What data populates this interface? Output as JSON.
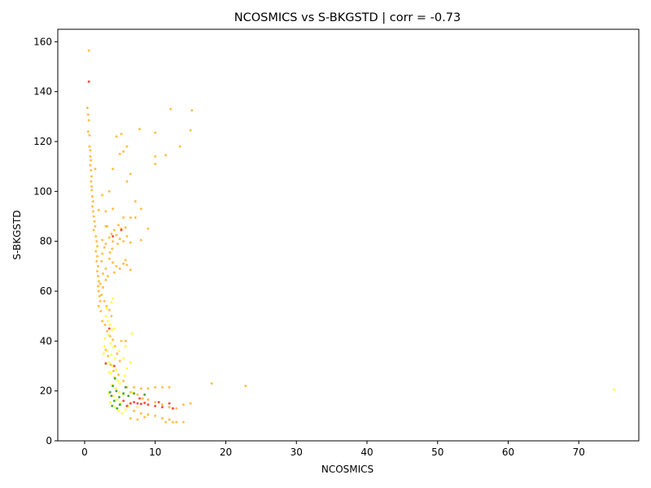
{
  "chart_data": {
    "type": "scatter",
    "title": "NCOSMICS vs S-BKGSTD | corr = -0.73",
    "xlabel": "NCOSMICS",
    "ylabel": "S-BKGSTD",
    "xlim": [
      -3.8,
      78.5
    ],
    "ylim": [
      0,
      165
    ],
    "xticks": [
      0,
      10,
      20,
      30,
      40,
      50,
      60,
      70
    ],
    "yticks": [
      0,
      20,
      40,
      60,
      80,
      100,
      120,
      140,
      160
    ],
    "grid": false,
    "legend": "none",
    "colors": {
      "orange": "#ffa500",
      "yellow": "#ffff00",
      "red": "#ff0000",
      "green": "#008000"
    },
    "series": [
      {
        "color_key": "orange",
        "points": [
          [
            0.6,
            156.5
          ],
          [
            0.4,
            133.5
          ],
          [
            0.5,
            130.8
          ],
          [
            0.6,
            128.5
          ],
          [
            0.5,
            124.0
          ],
          [
            0.7,
            122.5
          ],
          [
            0.7,
            118.0
          ],
          [
            0.8,
            116.5
          ],
          [
            0.8,
            114.0
          ],
          [
            0.9,
            112.5
          ],
          [
            0.8,
            110.5
          ],
          [
            0.9,
            108.5
          ],
          [
            1.0,
            106.0
          ],
          [
            0.9,
            104.0
          ],
          [
            1.0,
            102.0
          ],
          [
            1.0,
            100.5
          ],
          [
            1.1,
            98.0
          ],
          [
            1.2,
            96.0
          ],
          [
            1.1,
            94.0
          ],
          [
            1.2,
            92.0
          ],
          [
            1.3,
            90.0
          ],
          [
            1.4,
            88.0
          ],
          [
            1.5,
            86.0
          ],
          [
            1.3,
            84.5
          ],
          [
            1.6,
            82.0
          ],
          [
            1.7,
            80.0
          ],
          [
            1.8,
            78.0
          ],
          [
            1.6,
            76.0
          ],
          [
            1.8,
            74.0
          ],
          [
            1.7,
            72.0
          ],
          [
            1.9,
            70.0
          ],
          [
            1.8,
            68.0
          ],
          [
            1.9,
            66.0
          ],
          [
            2.0,
            64.0
          ],
          [
            1.9,
            62.0
          ],
          [
            2.0,
            60.0
          ],
          [
            2.1,
            58.0
          ],
          [
            2.2,
            56.0
          ],
          [
            2.0,
            54.0
          ],
          [
            2.3,
            52.0
          ],
          [
            2.5,
            80.5
          ],
          [
            3.0,
            79.0
          ],
          [
            3.5,
            81.5
          ],
          [
            4.0,
            80.0
          ],
          [
            4.5,
            82.5
          ],
          [
            5.0,
            81.0
          ],
          [
            5.5,
            80.0
          ],
          [
            6.0,
            82.0
          ],
          [
            6.5,
            79.5
          ],
          [
            3.8,
            83.0
          ],
          [
            4.2,
            84.5
          ],
          [
            5.2,
            85.0
          ],
          [
            4.8,
            86.5
          ],
          [
            3.2,
            86.0
          ],
          [
            2.8,
            77.5
          ],
          [
            2.5,
            75.0
          ],
          [
            3.5,
            73.0
          ],
          [
            4.0,
            71.5
          ],
          [
            4.5,
            70.0
          ],
          [
            5.0,
            69.0
          ],
          [
            5.5,
            71.0
          ],
          [
            6.0,
            70.5
          ],
          [
            6.5,
            68.5
          ],
          [
            3.0,
            69.0
          ],
          [
            2.6,
            67.0
          ],
          [
            3.3,
            66.0
          ],
          [
            4.2,
            67.5
          ],
          [
            5.8,
            72.5
          ],
          [
            2.4,
            72.0
          ],
          [
            3.6,
            75.5
          ],
          [
            2.2,
            63.0
          ],
          [
            2.6,
            61.5
          ],
          [
            3.0,
            64.5
          ],
          [
            2.4,
            58.5
          ],
          [
            2.8,
            56.0
          ],
          [
            3.1,
            54.0
          ],
          [
            3.5,
            52.5
          ],
          [
            3.8,
            50.0
          ],
          [
            2.5,
            48.0
          ],
          [
            2.9,
            46.5
          ],
          [
            3.2,
            44.0
          ],
          [
            3.6,
            42.0
          ],
          [
            4.0,
            40.5
          ],
          [
            5.2,
            40.0
          ],
          [
            5.8,
            40.0
          ],
          [
            4.3,
            38.0
          ],
          [
            3.0,
            36.5
          ],
          [
            3.3,
            34.0
          ],
          [
            4.6,
            35.0
          ],
          [
            5.0,
            32.0
          ],
          [
            3.7,
            30.5
          ],
          [
            4.1,
            28.0
          ],
          [
            4.8,
            26.5
          ],
          [
            5.5,
            24.0
          ],
          [
            6.0,
            21.5
          ],
          [
            7.0,
            21.5
          ],
          [
            8.0,
            21.0
          ],
          [
            9.0,
            21.0
          ],
          [
            10.0,
            21.5
          ],
          [
            11.0,
            21.5
          ],
          [
            12.0,
            21.5
          ],
          [
            6.5,
            19.5
          ],
          [
            7.5,
            18.5
          ],
          [
            8.2,
            17.0
          ],
          [
            9.0,
            16.5
          ],
          [
            10.0,
            15.5
          ],
          [
            11.0,
            14.5
          ],
          [
            12.0,
            13.5
          ],
          [
            13.0,
            13.0
          ],
          [
            14.0,
            14.5
          ],
          [
            15.0,
            15.0
          ],
          [
            7.0,
            12.0
          ],
          [
            8.0,
            11.0
          ],
          [
            9.0,
            10.5
          ],
          [
            10.0,
            10.0
          ],
          [
            11.0,
            9.0
          ],
          [
            12.0,
            8.5
          ],
          [
            13.0,
            7.5
          ],
          [
            11.5,
            7.5
          ],
          [
            12.5,
            7.5
          ],
          [
            14.0,
            7.5
          ],
          [
            6.5,
            9.0
          ],
          [
            7.5,
            8.5
          ],
          [
            8.5,
            9.5
          ],
          [
            3.0,
            86.0
          ],
          [
            2.0,
            92.5
          ],
          [
            3.0,
            92.0
          ],
          [
            4.0,
            93.0
          ],
          [
            5.5,
            89.5
          ],
          [
            6.5,
            89.5
          ],
          [
            7.2,
            89.5
          ],
          [
            8.0,
            93.0
          ],
          [
            9.0,
            85.0
          ],
          [
            8.0,
            80.5
          ],
          [
            2.5,
            98.5
          ],
          [
            3.5,
            100.0
          ],
          [
            1.5,
            109.0
          ],
          [
            4.0,
            109.0
          ],
          [
            5.5,
            116.0
          ],
          [
            6.0,
            118.0
          ],
          [
            5.0,
            115.0
          ],
          [
            6.5,
            107.0
          ],
          [
            4.5,
            122.0
          ],
          [
            5.2,
            123.0
          ],
          [
            7.8,
            125.0
          ],
          [
            10.0,
            123.5
          ],
          [
            10.0,
            114.0
          ],
          [
            10.0,
            111.0
          ],
          [
            11.5,
            114.5
          ],
          [
            13.5,
            118.0
          ],
          [
            12.2,
            133.0
          ],
          [
            15.2,
            132.5
          ],
          [
            15.0,
            124.5
          ],
          [
            18.0,
            23.0
          ],
          [
            22.8,
            22.0
          ],
          [
            6.0,
            104.0
          ],
          [
            7.2,
            96.0
          ],
          [
            5.8,
            85.5
          ],
          [
            4.7,
            79.0
          ],
          [
            3.9,
            77.0
          ]
        ]
      },
      {
        "color_key": "yellow",
        "points": [
          [
            3.0,
            50.0
          ],
          [
            3.3,
            48.0
          ],
          [
            3.6,
            46.5
          ],
          [
            3.9,
            44.5
          ],
          [
            3.4,
            42.5
          ],
          [
            2.9,
            41.0
          ],
          [
            3.7,
            39.0
          ],
          [
            4.1,
            37.5
          ],
          [
            3.2,
            36.0
          ],
          [
            3.8,
            34.5
          ],
          [
            4.3,
            33.0
          ],
          [
            3.5,
            31.5
          ],
          [
            4.0,
            30.0
          ],
          [
            4.5,
            28.5
          ],
          [
            3.7,
            27.0
          ],
          [
            4.2,
            25.5
          ],
          [
            4.7,
            24.0
          ],
          [
            3.9,
            22.5
          ],
          [
            4.4,
            21.0
          ],
          [
            4.9,
            19.5
          ],
          [
            4.1,
            18.0
          ],
          [
            4.6,
            16.5
          ],
          [
            5.1,
            15.0
          ],
          [
            4.3,
            13.5
          ],
          [
            4.8,
            12.0
          ],
          [
            5.3,
            11.0
          ],
          [
            5.8,
            12.5
          ],
          [
            6.2,
            14.0
          ],
          [
            3.6,
            15.5
          ],
          [
            3.4,
            19.0
          ],
          [
            5.5,
            18.5
          ],
          [
            5.0,
            23.0
          ],
          [
            5.7,
            26.0
          ],
          [
            6.0,
            29.0
          ],
          [
            6.5,
            31.5
          ],
          [
            5.5,
            33.0
          ],
          [
            4.9,
            36.0
          ],
          [
            5.8,
            38.0
          ],
          [
            6.7,
            43.0
          ],
          [
            2.8,
            38.0
          ],
          [
            3.1,
            53.0
          ],
          [
            3.8,
            55.5
          ],
          [
            4.0,
            57.0
          ],
          [
            3.5,
            27.5
          ],
          [
            3.0,
            31.0
          ],
          [
            2.7,
            35.0
          ],
          [
            6.8,
            19.5
          ],
          [
            7.5,
            13.5
          ],
          [
            75.0,
            20.5
          ],
          [
            4.2,
            45.0
          ]
        ]
      },
      {
        "color_key": "red",
        "points": [
          [
            0.6,
            144.0
          ],
          [
            4.0,
            82.0
          ],
          [
            5.2,
            84.5
          ],
          [
            3.5,
            45.0
          ],
          [
            4.2,
            30.0
          ],
          [
            3.0,
            31.0
          ],
          [
            6.5,
            15.0
          ],
          [
            7.0,
            15.5
          ],
          [
            7.5,
            15.0
          ],
          [
            8.0,
            14.8
          ],
          [
            8.5,
            15.2
          ],
          [
            9.0,
            14.5
          ],
          [
            10.0,
            14.0
          ],
          [
            11.0,
            13.5
          ],
          [
            12.0,
            15.0
          ],
          [
            12.5,
            13.0
          ],
          [
            6.0,
            14.0
          ],
          [
            7.8,
            17.0
          ],
          [
            5.5,
            16.0
          ],
          [
            10.5,
            15.5
          ]
        ]
      },
      {
        "color_key": "green",
        "points": [
          [
            4.0,
            22.0
          ],
          [
            4.5,
            20.0
          ],
          [
            3.8,
            18.0
          ],
          [
            4.2,
            16.0
          ],
          [
            5.0,
            14.5
          ],
          [
            4.6,
            13.0
          ],
          [
            5.5,
            19.0
          ],
          [
            3.6,
            19.5
          ],
          [
            5.8,
            21.5
          ],
          [
            4.9,
            17.5
          ],
          [
            6.2,
            18.0
          ],
          [
            7.0,
            19.0
          ],
          [
            8.5,
            18.5
          ],
          [
            4.3,
            25.0
          ],
          [
            3.9,
            14.0
          ]
        ]
      }
    ]
  }
}
